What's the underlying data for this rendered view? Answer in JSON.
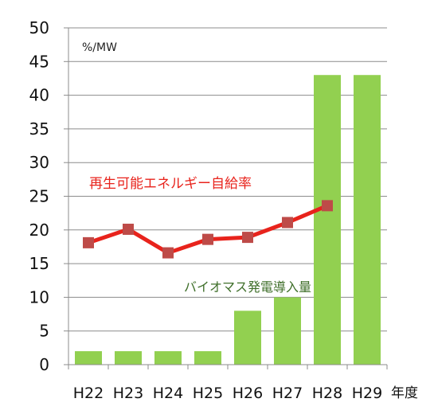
{
  "chart_data": {
    "type": "bar+line",
    "unit_label": "%/MW",
    "x_unit_label": "年度",
    "categories": [
      "H22",
      "H23",
      "H24",
      "H25",
      "H26",
      "H27",
      "H28",
      "H29"
    ],
    "ylim": [
      0,
      50
    ],
    "yticks": [
      0,
      5,
      10,
      15,
      20,
      25,
      30,
      35,
      40,
      45,
      50
    ],
    "grid": "horizontal",
    "series": [
      {
        "name": "バイオマス発電導入量",
        "type": "bar",
        "color": "#92d050",
        "values": [
          2,
          2,
          2,
          2,
          8,
          10,
          43,
          43
        ]
      },
      {
        "name": "再生可能エネルギー自給率",
        "type": "line",
        "color": "#e8231c",
        "marker_color": "#be4b48",
        "values": [
          18.1,
          20.1,
          16.6,
          18.6,
          18.9,
          21.1,
          23.6,
          null
        ]
      }
    ]
  }
}
